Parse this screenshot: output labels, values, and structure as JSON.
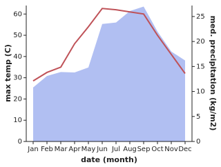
{
  "chart_data": {
    "type": "area-line",
    "xlabel": "date (month)",
    "ylabel": "max temp (C)",
    "y2label": "med. precipitation (kg/m2)",
    "categories": [
      "Jan",
      "Feb",
      "Mar",
      "Apr",
      "May",
      "Jun",
      "Jul",
      "Aug",
      "Sep",
      "Oct",
      "Nov",
      "Dec"
    ],
    "series": [
      {
        "name": "med. precipitation",
        "type": "area",
        "axis": "y2",
        "color": "#b1bff2",
        "values": [
          10.8,
          13.1,
          13.9,
          13.8,
          14.8,
          23.5,
          23.8,
          26.1,
          27.0,
          22.0,
          18.0,
          16.2
        ]
      },
      {
        "name": "max temp",
        "type": "line",
        "color": "#bf5258",
        "values": [
          28.5,
          32.5,
          35,
          46,
          54,
          62.6,
          62,
          61,
          60,
          50,
          41,
          32
        ]
      }
    ],
    "ylim": [
      0,
      64
    ],
    "yticks": [
      0,
      10,
      20,
      30,
      40,
      50,
      60
    ],
    "y2lim": [
      0,
      27.2
    ],
    "y2ticks": [
      0,
      5,
      10,
      15,
      20,
      25
    ]
  }
}
